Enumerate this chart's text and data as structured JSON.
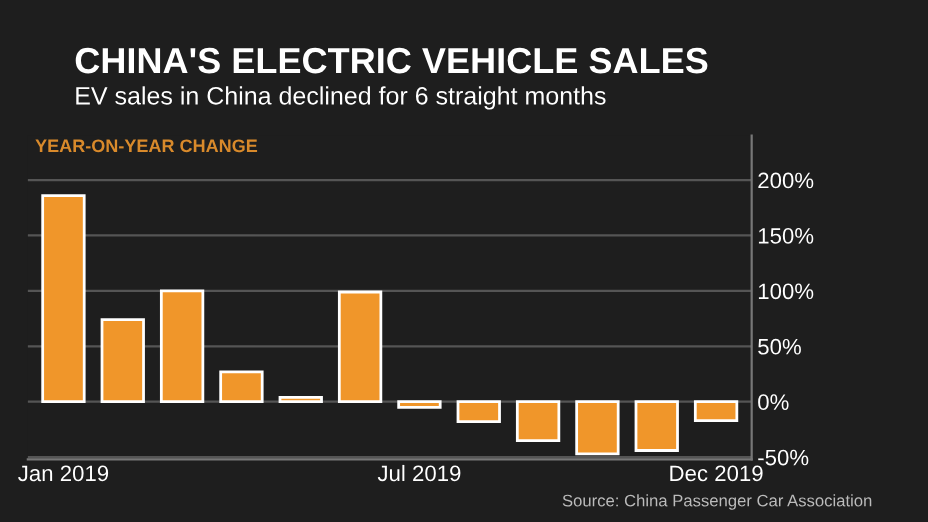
{
  "chart_data": {
    "type": "bar",
    "title": "CHINA'S ELECTRIC VEHICLE SALES",
    "subtitle": "EV sales in China declined for 6 straight months",
    "ylabel": "YEAR-ON-YEAR CHANGE",
    "categories": [
      "Jan 2019",
      null,
      null,
      null,
      null,
      null,
      "Jul 2019",
      null,
      null,
      null,
      null,
      "Dec 2019"
    ],
    "series": [
      {
        "color": "#f0962a",
        "values": [
          186,
          74,
          100,
          27,
          4,
          99,
          -5,
          -18,
          -35,
          -47,
          -44,
          -17
        ]
      }
    ],
    "ylim": [
      -52,
      240
    ],
    "yticks": [
      {
        "value": -50,
        "label": "-50%"
      },
      {
        "value": 0,
        "label": "0%"
      },
      {
        "value": 50,
        "label": "50%"
      },
      {
        "value": 100,
        "label": "100%"
      },
      {
        "value": 150,
        "label": "150%"
      },
      {
        "value": 200,
        "label": "200%"
      }
    ],
    "grid": "y",
    "annotations": [
      "Source: China Passenger Car Association"
    ]
  }
}
